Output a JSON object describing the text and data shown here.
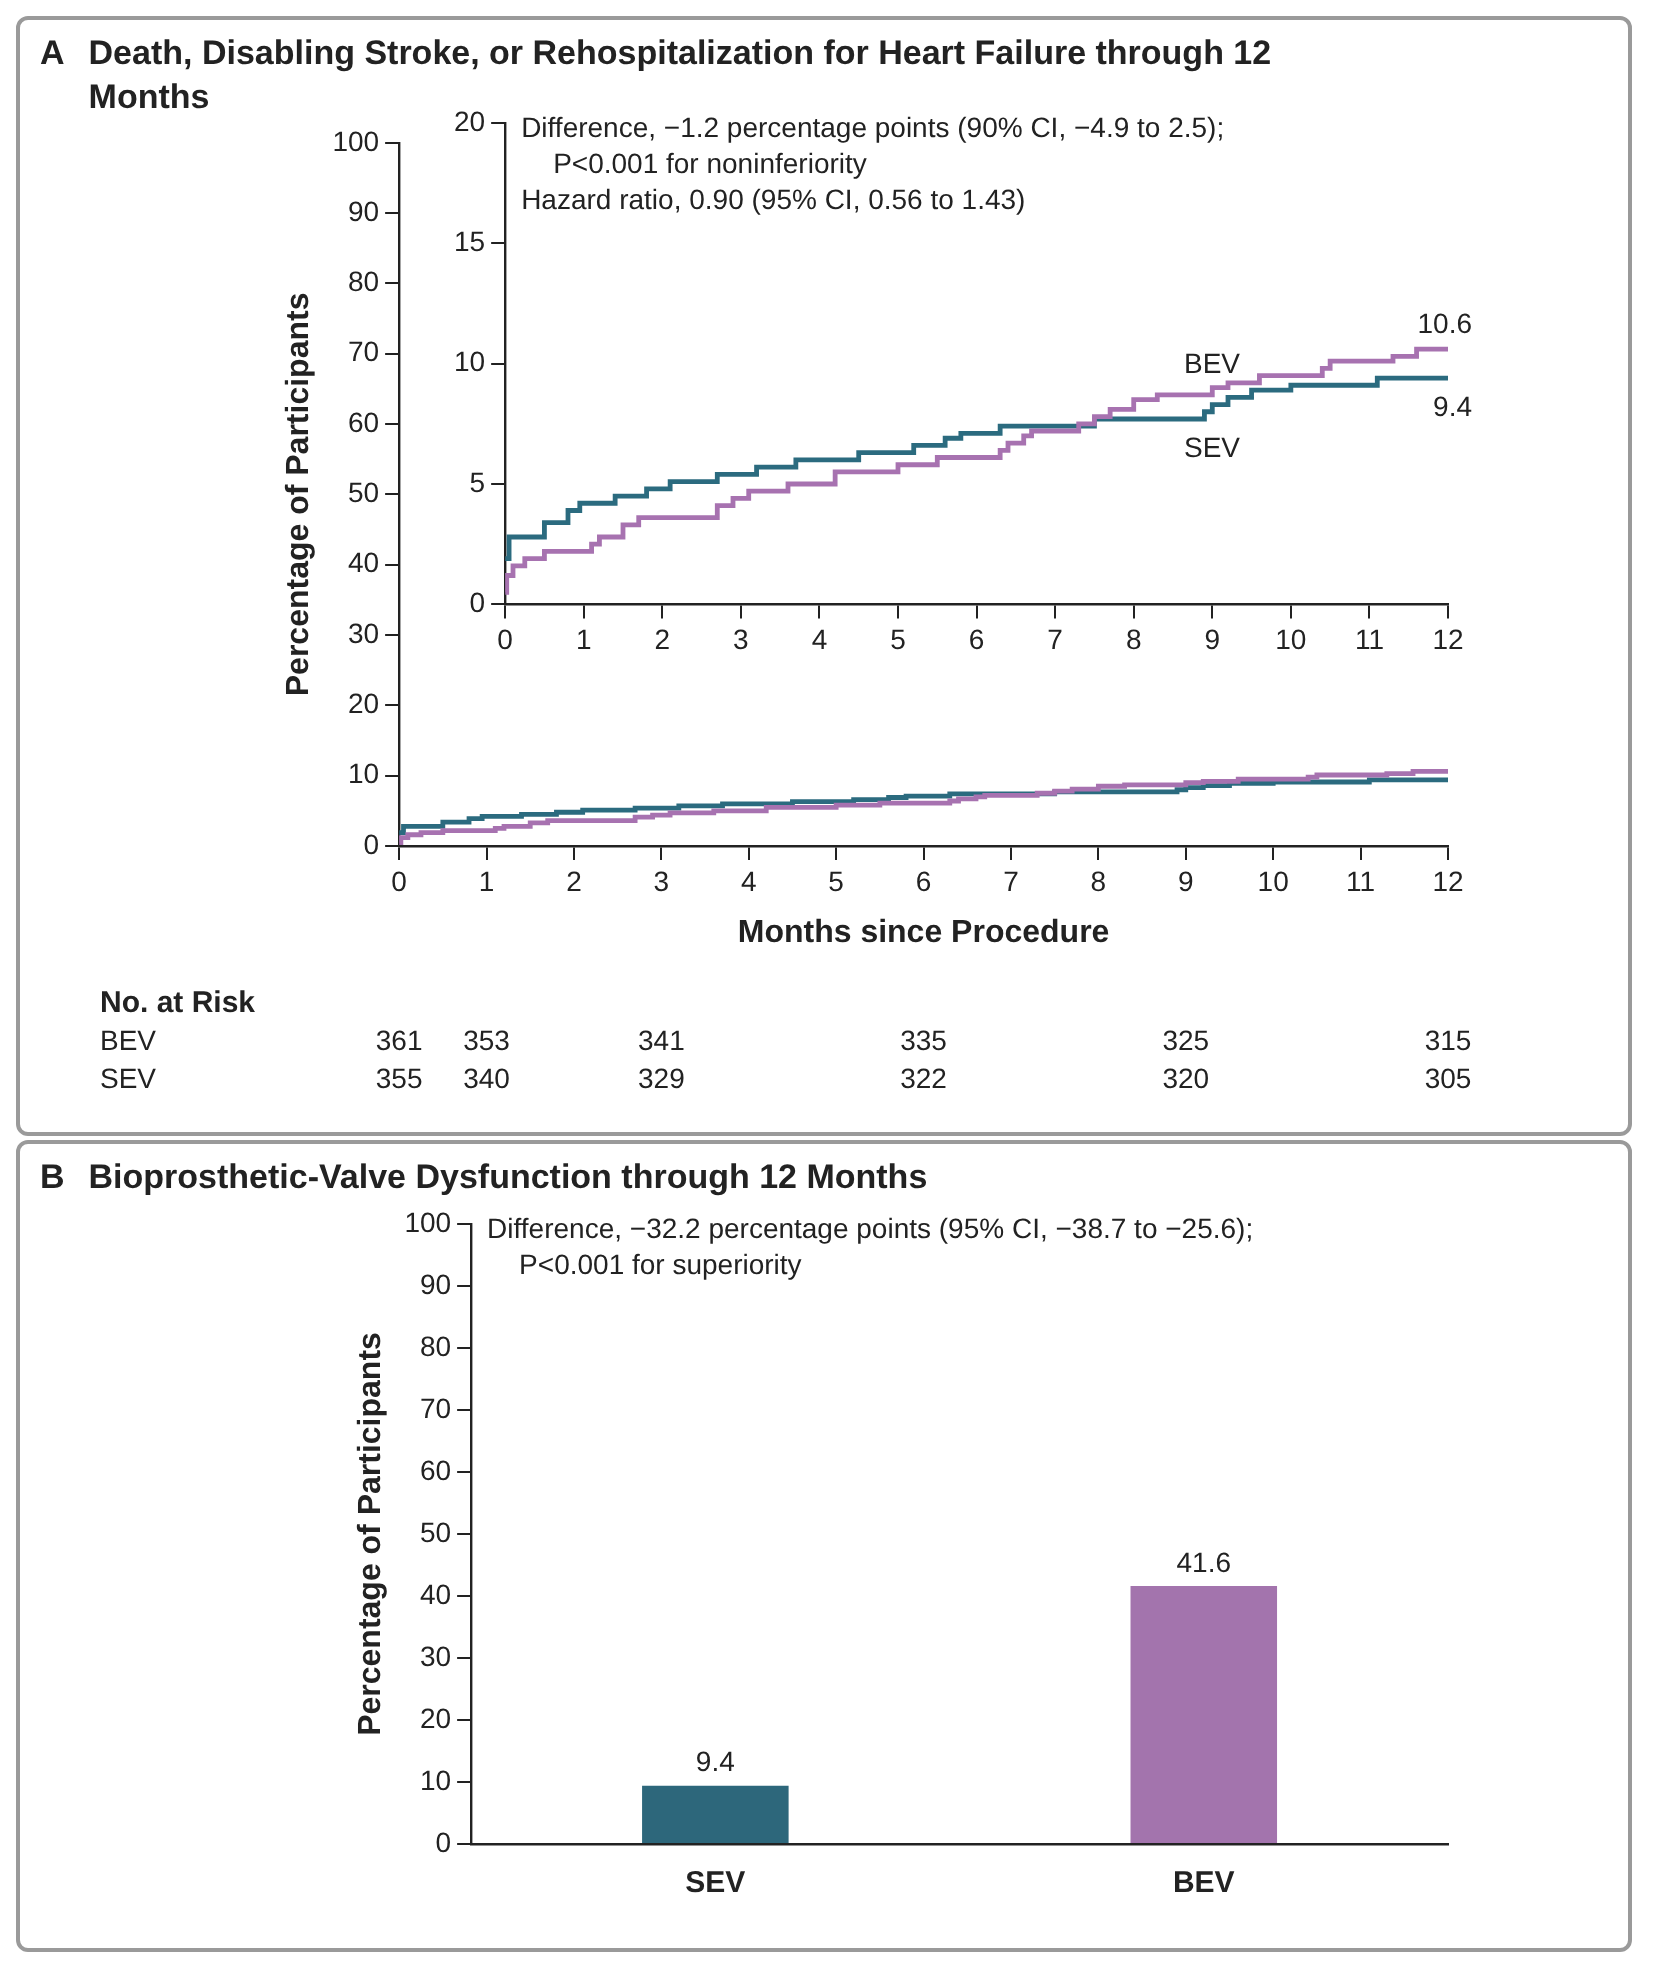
{
  "chart_data": [
    {
      "type": "step",
      "title": "Death, Disabling Stroke, or Rehospitalization for Heart Failure through 12 Months",
      "xlabel": "Months since Procedure",
      "ylabel": "Percentage of Participants",
      "xlim": [
        0,
        12
      ],
      "xticks": [
        0,
        1,
        2,
        3,
        4,
        5,
        6,
        7,
        8,
        9,
        10,
        11,
        12
      ],
      "ylim": [
        0,
        100
      ],
      "yticks": [
        0,
        10,
        20,
        30,
        40,
        50,
        60,
        70,
        80,
        90,
        100
      ],
      "series": [
        {
          "color": "#a772b0",
          "x": [
            0,
            0.02,
            0.1,
            0.25,
            0.5,
            1.1,
            1.2,
            1.5,
            1.7,
            2.7,
            2.9,
            3.1,
            3.6,
            4.2,
            5.0,
            5.5,
            6.3,
            6.4,
            6.6,
            6.7,
            7.3,
            7.5,
            7.7,
            8.0,
            8.3,
            9.0,
            9.2,
            9.6,
            10.4,
            10.5,
            11.3,
            11.6,
            12
          ],
          "values": [
            0.5,
            1.2,
            1.6,
            1.9,
            2.2,
            2.5,
            2.8,
            3.3,
            3.6,
            4.1,
            4.4,
            4.7,
            5.0,
            5.5,
            5.8,
            6.1,
            6.4,
            6.7,
            7.0,
            7.2,
            7.5,
            7.8,
            8.1,
            8.5,
            8.7,
            9.0,
            9.2,
            9.5,
            9.8,
            10.1,
            10.3,
            10.6,
            10.6
          ]
        },
        {
          "color": "#2b6b7f",
          "x": [
            0,
            0.05,
            0.5,
            0.8,
            0.95,
            1.4,
            1.8,
            2.1,
            2.7,
            3.2,
            3.7,
            4.5,
            5.2,
            5.6,
            5.8,
            6.3,
            7.5,
            8.9,
            9.0,
            9.2,
            9.5,
            10.0,
            11.1,
            12
          ],
          "values": [
            1.9,
            2.8,
            3.4,
            3.9,
            4.2,
            4.5,
            4.8,
            5.1,
            5.4,
            5.7,
            6.0,
            6.3,
            6.6,
            6.9,
            7.1,
            7.4,
            7.7,
            8.0,
            8.3,
            8.6,
            8.9,
            9.1,
            9.4,
            9.4
          ]
        }
      ],
      "annotations": [
        "A",
        "No. at Risk",
        "BEV",
        "361",
        "353",
        "341",
        "335",
        "325",
        "315",
        "SEV",
        "355",
        "340",
        "329",
        "322",
        "320",
        "305"
      ]
    },
    {
      "type": "step",
      "xlim": [
        0,
        12
      ],
      "xticks": [
        0,
        1,
        2,
        3,
        4,
        5,
        6,
        7,
        8,
        9,
        10,
        11,
        12
      ],
      "ylim": [
        0,
        20
      ],
      "yticks": [
        0,
        5,
        10,
        15,
        20
      ],
      "series": [
        {
          "name": "BEV",
          "color": "#a772b0",
          "x": [
            0,
            0.02,
            0.1,
            0.25,
            0.5,
            1.1,
            1.2,
            1.5,
            1.7,
            2.7,
            2.9,
            3.1,
            3.6,
            4.2,
            5.0,
            5.5,
            6.3,
            6.4,
            6.6,
            6.7,
            7.3,
            7.5,
            7.7,
            8.0,
            8.3,
            9.0,
            9.2,
            9.6,
            10.4,
            10.5,
            11.3,
            11.6,
            12
          ],
          "values": [
            0.5,
            1.2,
            1.6,
            1.9,
            2.2,
            2.5,
            2.8,
            3.3,
            3.6,
            4.1,
            4.4,
            4.7,
            5.0,
            5.5,
            5.8,
            6.1,
            6.4,
            6.7,
            7.0,
            7.2,
            7.5,
            7.8,
            8.1,
            8.5,
            8.7,
            9.0,
            9.2,
            9.5,
            9.8,
            10.1,
            10.3,
            10.6,
            10.6
          ]
        },
        {
          "name": "SEV",
          "color": "#2b6b7f",
          "x": [
            0,
            0.05,
            0.5,
            0.8,
            0.95,
            1.4,
            1.8,
            2.1,
            2.7,
            3.2,
            3.7,
            4.5,
            5.2,
            5.6,
            5.8,
            6.3,
            7.5,
            8.9,
            9.0,
            9.2,
            9.5,
            10.0,
            11.1,
            12
          ],
          "values": [
            1.9,
            2.8,
            3.4,
            3.9,
            4.2,
            4.5,
            4.8,
            5.1,
            5.4,
            5.7,
            6.0,
            6.3,
            6.6,
            6.9,
            7.1,
            7.4,
            7.7,
            8.0,
            8.3,
            8.6,
            8.9,
            9.1,
            9.4,
            9.4
          ]
        }
      ],
      "annotations": [
        "Difference, −1.2 percentage points (90% CI, −4.9 to 2.5);",
        "P<0.001 for noninferiority",
        "Hazard ratio, 0.90 (95% CI, 0.56 to 1.43)",
        {
          "text": "10.6",
          "x": 12,
          "y": 10.6
        },
        {
          "text": "9.4",
          "x": 12,
          "y": 9.4
        }
      ]
    },
    {
      "type": "bar",
      "title": "Bioprosthetic-Valve Dysfunction through 12 Months",
      "ylabel": "Percentage of Participants",
      "categories": [
        "SEV",
        "BEV"
      ],
      "values": [
        9.4,
        41.6
      ],
      "colors": [
        "#2d677b",
        "#a374ad"
      ],
      "ylim": [
        0,
        100
      ],
      "yticks": [
        0,
        10,
        20,
        30,
        40,
        50,
        60,
        70,
        80,
        90,
        100
      ],
      "data_labels": true,
      "annotations": [
        "B",
        "Difference, −32.2 percentage points (95% CI, −38.7 to −25.6);",
        "P<0.001 for superiority"
      ]
    }
  ]
}
